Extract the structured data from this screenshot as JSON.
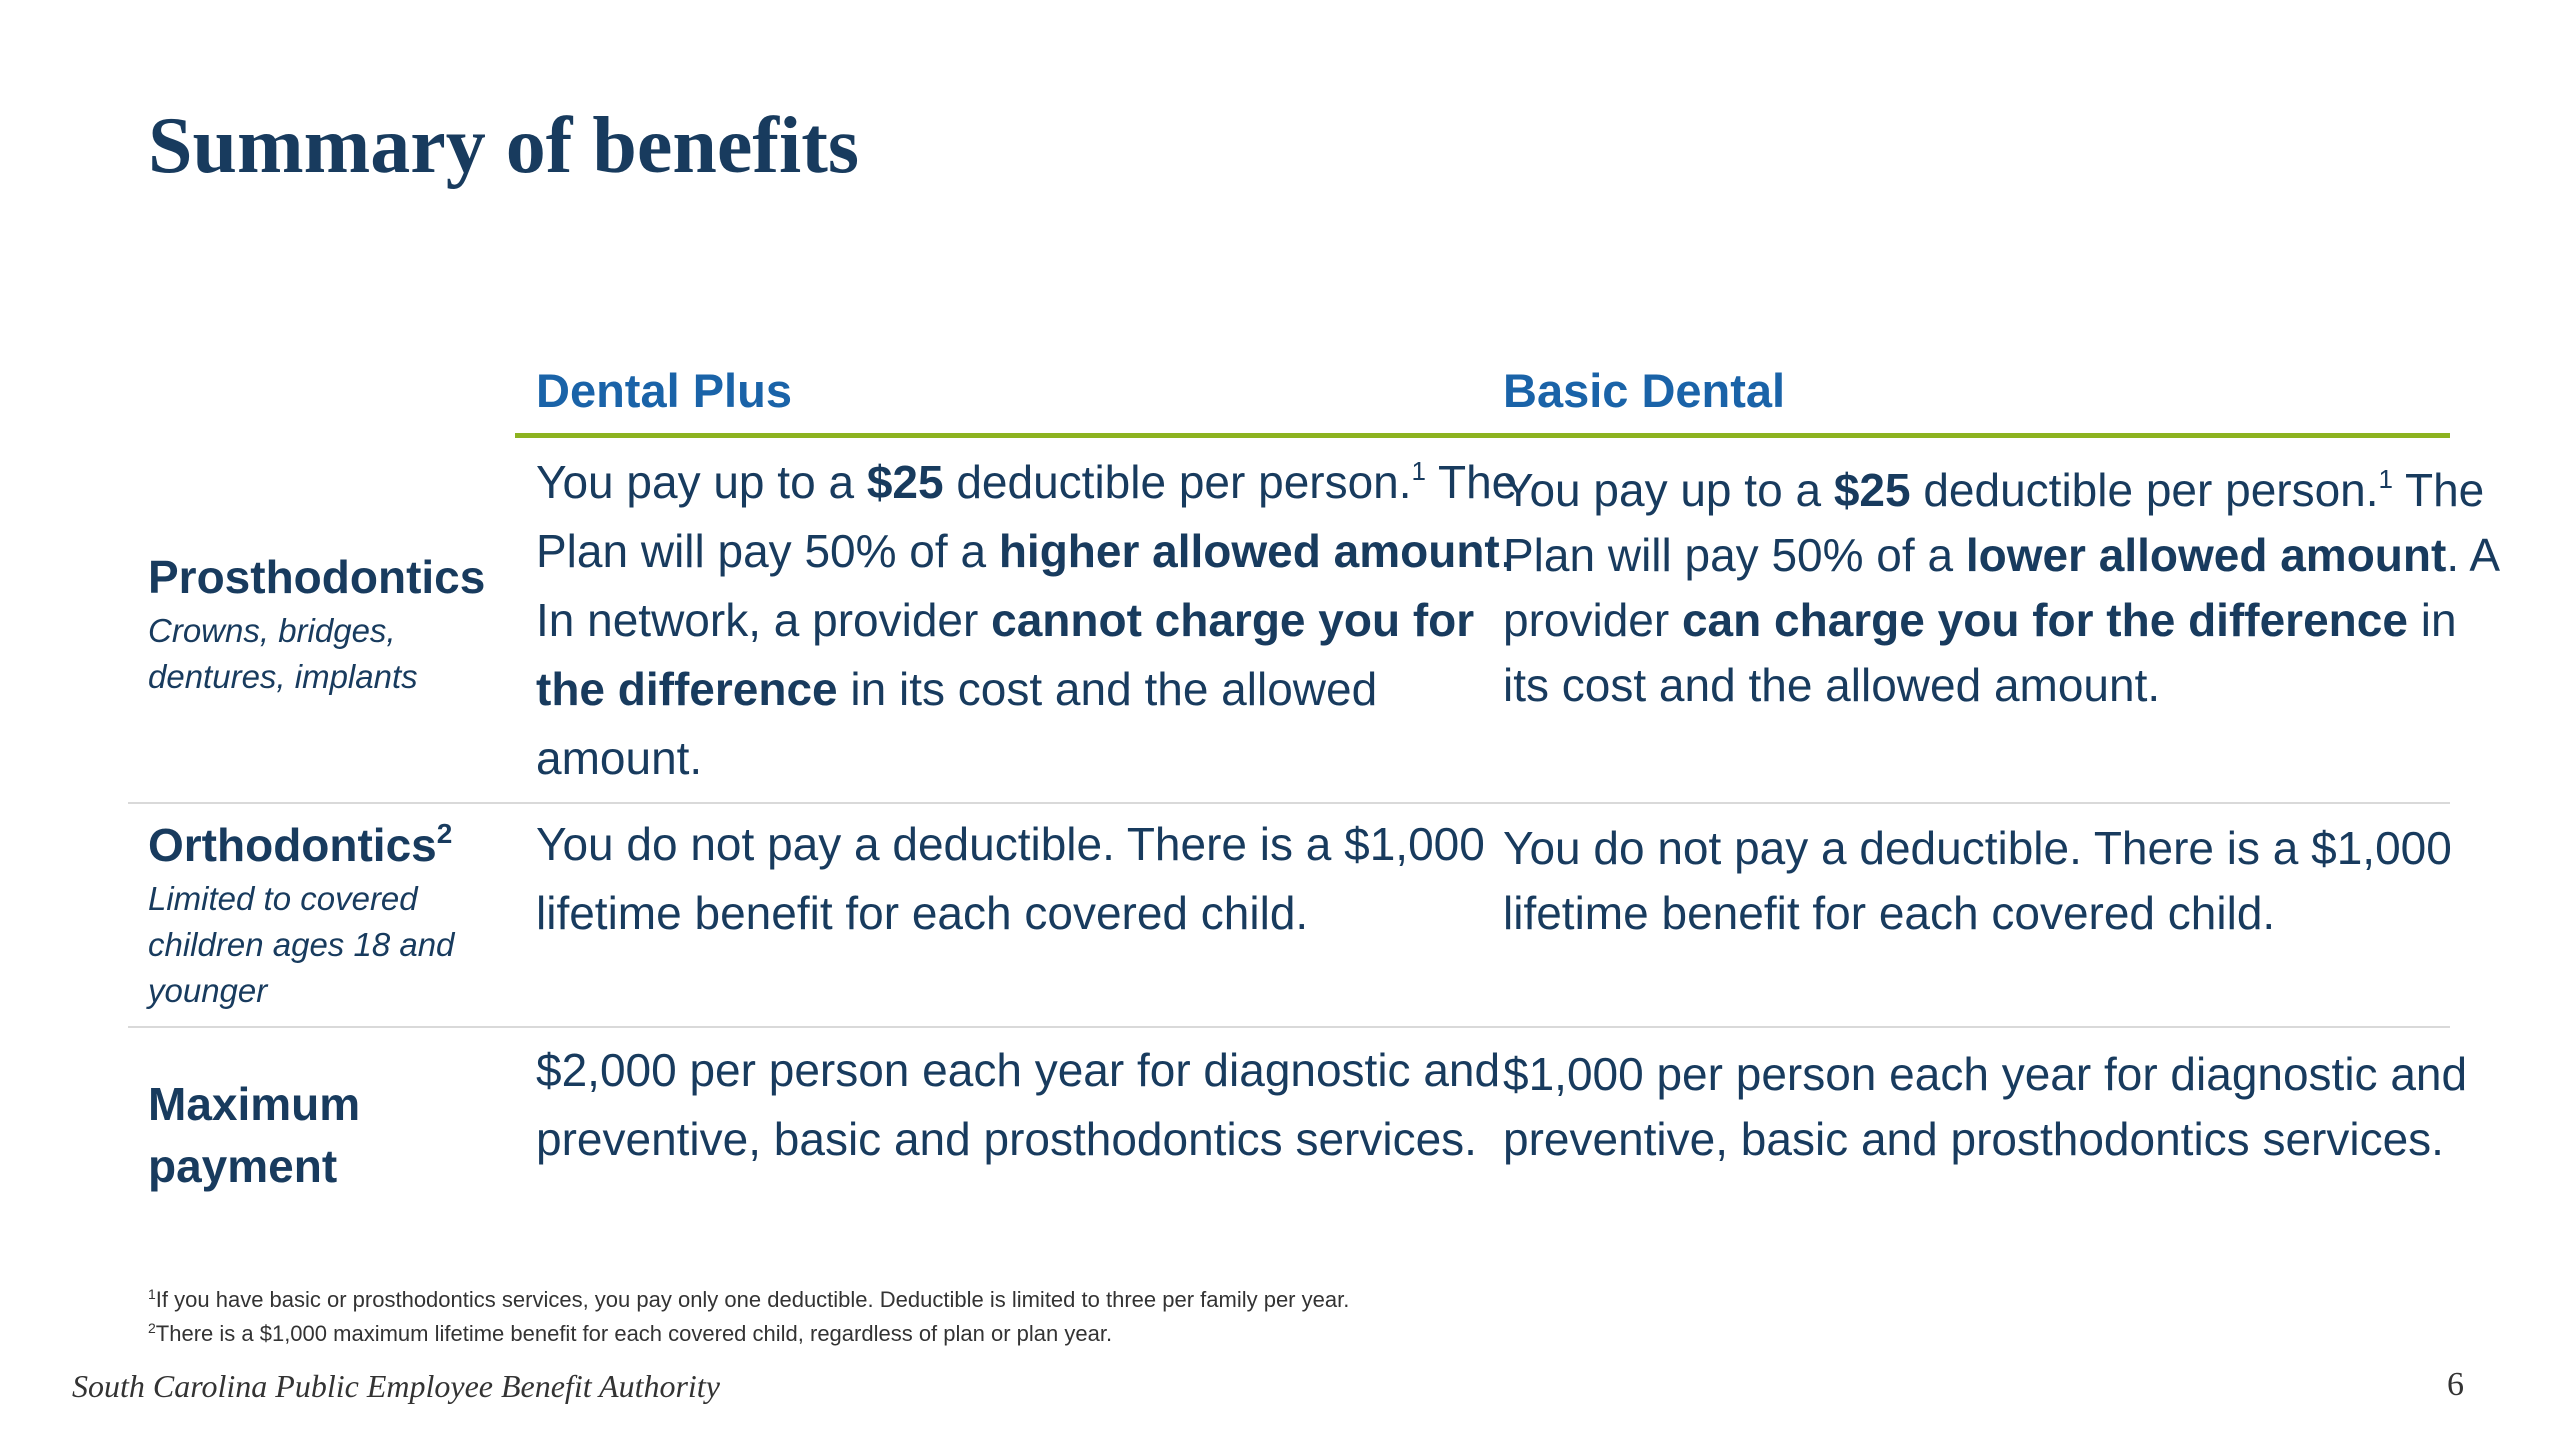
{
  "slide": {
    "title": "Summary of benefits",
    "page_number": "6",
    "footer_org": "South Carolina Public Employee Benefit Authority"
  },
  "columns": {
    "plan_a": "Dental Plus",
    "plan_b": "Basic Dental"
  },
  "colors": {
    "title": "#183b5e",
    "column_header": "#1a63a8",
    "accent_rule": "#8db320",
    "body_text": "#183b5e"
  },
  "rows": {
    "prosthodontics": {
      "label": "Prosthodontics",
      "sublabel": "Crowns, bridges, dentures, implants",
      "plus": {
        "t1": "You pay up to a ",
        "b1": "$25",
        "t2": " deductible per person.",
        "sup": "1",
        "t3": " The Plan will pay 50% of a ",
        "b2": "higher allowed amount",
        "t4": ". In network, a provider ",
        "b3": "cannot charge you for the difference",
        "t5": " in its cost and the allowed amount."
      },
      "basic": {
        "t1": "You pay up to a ",
        "b1": "$25",
        "t2": " deductible per person.",
        "sup": "1",
        "t3": " The Plan will pay 50% of a ",
        "b2": "lower allowed amount",
        "t4": ". A provider ",
        "b3": "can charge you for the difference",
        "t5": " in its cost and the allowed amount."
      }
    },
    "orthodontics": {
      "label": "Orthodontics",
      "label_sup": "2",
      "sublabel": "Limited to covered children ages 18 and younger",
      "plus": "You do not pay a deductible. There is a $1,000 lifetime benefit for each covered child.",
      "basic": "You do not pay a deductible. There is a $1,000 lifetime benefit for each covered child."
    },
    "maximum_payment": {
      "label": "Maximum payment",
      "plus": "$2,000 per person each year for diagnostic and preventive, basic and prosthodontics services.",
      "basic": "$1,000 per person each year for diagnostic and preventive, basic and prosthodontics services."
    }
  },
  "footnotes": [
    {
      "marker": "1",
      "text": "If you have basic or prosthodontics services, you pay only one deductible. Deductible is limited to three per family per year."
    },
    {
      "marker": "2",
      "text": "There is a $1,000 maximum lifetime benefit for each covered child, regardless of plan or plan year."
    }
  ]
}
